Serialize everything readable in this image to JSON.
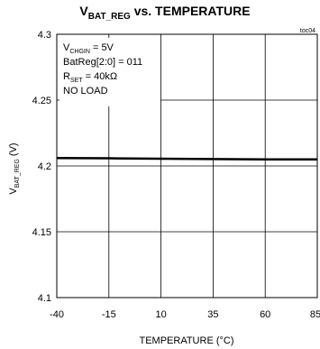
{
  "chart_data": {
    "type": "line",
    "title": {
      "main": "V",
      "sub": "BAT_REG",
      "rest": " vs. TEMPERATURE"
    },
    "figure_tag": "toc04",
    "xlabel": "TEMPERATURE (°C)",
    "ylabel": "V BAT_REG (V)",
    "ylabel_parts": {
      "main": "V",
      "sub": "BAT_REG",
      "rest": " (V)"
    },
    "xlim": [
      -40,
      85
    ],
    "ylim": [
      4.1,
      4.3
    ],
    "x_ticks": [
      -40,
      -15,
      10,
      35,
      60,
      85
    ],
    "x_tick_labels": [
      "-40",
      "-15",
      "10",
      "35",
      "60",
      "85"
    ],
    "y_ticks": [
      4.1,
      4.15,
      4.2,
      4.25,
      4.3
    ],
    "y_tick_labels": [
      "4.1",
      "4.15",
      "4.2",
      "4.25",
      "4.3"
    ],
    "grid": true,
    "series": [
      {
        "x": [
          -40,
          -15,
          10,
          35,
          60,
          85
        ],
        "y": [
          4.206,
          4.2058,
          4.2055,
          4.2052,
          4.205,
          4.205
        ],
        "color": "#000000"
      }
    ],
    "conditions": [
      {
        "main": "V",
        "sub": "CHGIN",
        "rest": " = 5V"
      },
      {
        "main": "BatReg[2:0] = 011",
        "sub": "",
        "rest": ""
      },
      {
        "main": "R",
        "sub": "SET",
        "rest": " = 40kΩ"
      },
      {
        "main": "NO LOAD",
        "sub": "",
        "rest": ""
      }
    ]
  }
}
